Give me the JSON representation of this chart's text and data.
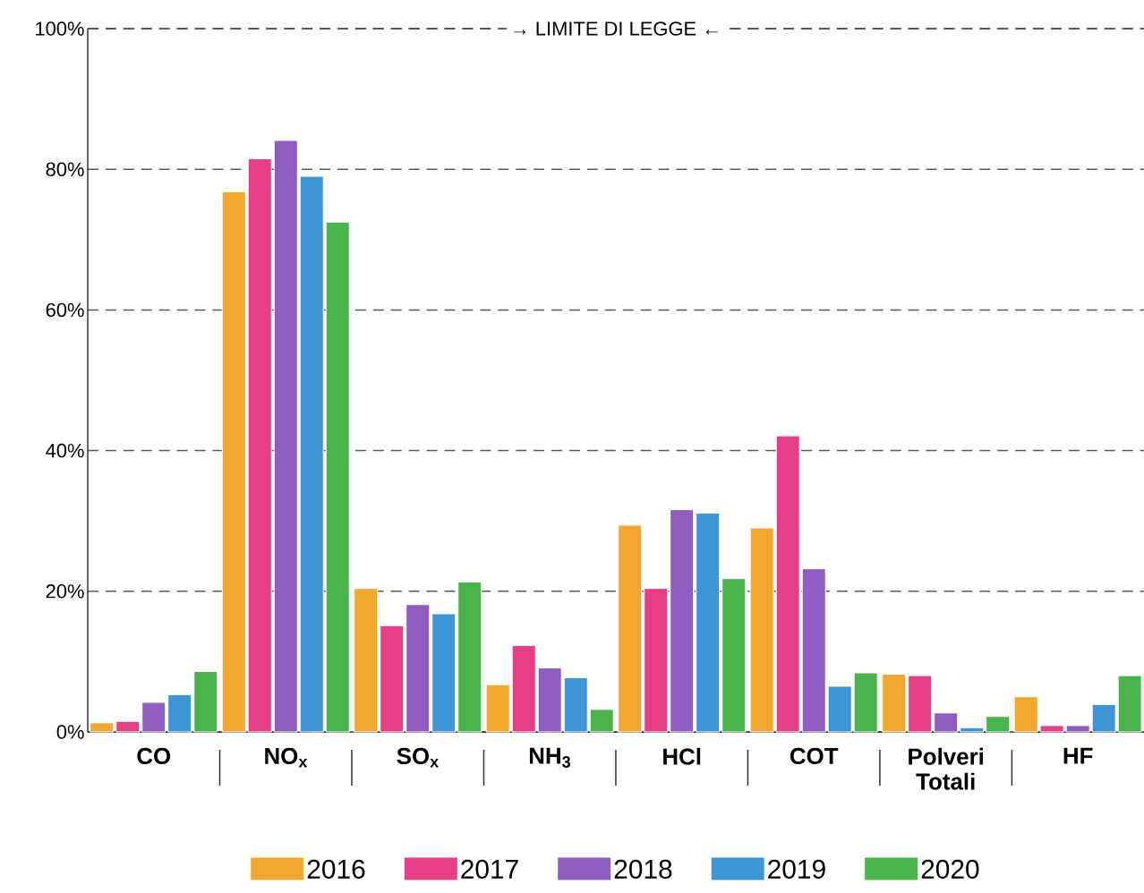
{
  "chart_data": {
    "type": "bar",
    "categories": [
      "CO",
      "NO$_{x}$",
      "SO$_{x}$",
      "NH$_{3}$",
      "HCl",
      "COT",
      "Polveri Totali",
      "HF"
    ],
    "series": [
      {
        "name": "2016",
        "color": "#f2a72e",
        "values": [
          1.3,
          76.8,
          20.4,
          6.7,
          29.4,
          29,
          8.2,
          5
        ]
      },
      {
        "name": "2017",
        "color": "#e63e87",
        "values": [
          1.5,
          81.5,
          15.1,
          12.3,
          20.4,
          42.1,
          8,
          0.9
        ]
      },
      {
        "name": "2018",
        "color": "#8f5cbf",
        "values": [
          4.2,
          84.1,
          18.1,
          9.1,
          31.6,
          23.2,
          2.7,
          0.9
        ]
      },
      {
        "name": "2019",
        "color": "#3d95d6",
        "values": [
          5.3,
          79,
          16.8,
          7.7,
          31.1,
          6.5,
          0.6,
          3.9
        ]
      },
      {
        "name": "2020",
        "color": "#4bb34b",
        "values": [
          8.6,
          72.5,
          21.3,
          3.2,
          21.8,
          8.4,
          2.2,
          8
        ]
      }
    ],
    "ylim": [
      0,
      100
    ],
    "yticks": [
      {
        "value": 0,
        "label": "0%"
      },
      {
        "value": 20,
        "label": "20%"
      },
      {
        "value": 40,
        "label": "40%"
      },
      {
        "value": 60,
        "label": "60%"
      },
      {
        "value": 80,
        "label": "80%"
      },
      {
        "value": 100,
        "label": "100%"
      }
    ],
    "grid": "y",
    "ref_lines": [
      {
        "axis": "y",
        "value": 100,
        "label": "→ LIMITE DI LEGGE ←",
        "line_style": "dashed"
      }
    ],
    "legend": "bottom"
  }
}
